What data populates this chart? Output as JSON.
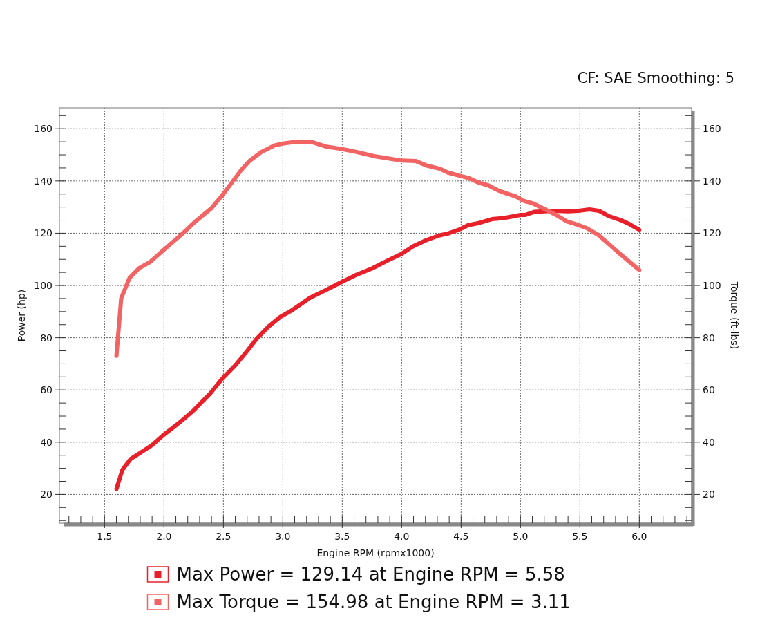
{
  "chart_data": {
    "type": "line",
    "xlabel": "Engine RPM (rpmx1000)",
    "ylabel": "Power (hp)",
    "y2label": "Torque (ft-lbs)",
    "annotations": [
      "CF: SAE Smoothing: 5"
    ],
    "series": [
      {
        "name": "Max Power = 129.14 at Engine RPM = 5.58",
        "color": "#e8202a",
        "x": [
          1.6,
          1.65,
          1.72,
          1.8,
          1.9,
          2.0,
          2.13,
          2.25,
          2.39,
          2.49,
          2.6,
          2.7,
          2.78,
          2.88,
          2.98,
          3.07,
          3.23,
          3.36,
          3.49,
          3.62,
          3.75,
          3.88,
          4.0,
          4.1,
          4.21,
          4.32,
          4.39,
          4.49,
          4.56,
          4.65,
          4.76,
          4.86,
          5.0,
          5.04,
          5.12,
          5.28,
          5.4,
          5.49,
          5.58,
          5.66,
          5.74,
          5.85,
          5.92,
          6.0
        ],
        "values": [
          22.1,
          29.4,
          33.6,
          35.9,
          38.9,
          42.9,
          47.5,
          52.2,
          58.7,
          64.3,
          69.4,
          74.9,
          79.6,
          84.3,
          88.0,
          90.3,
          95.3,
          98.2,
          101.2,
          104.1,
          106.5,
          109.5,
          112.1,
          115.1,
          117.4,
          119.2,
          119.9,
          121.5,
          123.1,
          123.9,
          125.4,
          125.8,
          127.0,
          127.0,
          128.2,
          128.6,
          128.4,
          128.6,
          129.1,
          128.6,
          126.6,
          124.9,
          123.4,
          121.3
        ]
      },
      {
        "name": "Max Torque = 154.98 at Engine RPM = 3.11",
        "color": "#f26464",
        "axis": "y2",
        "x": [
          1.6,
          1.64,
          1.71,
          1.79,
          1.88,
          2.0,
          2.15,
          2.26,
          2.4,
          2.49,
          2.57,
          2.65,
          2.72,
          2.82,
          2.93,
          3.0,
          3.11,
          3.25,
          3.36,
          3.49,
          3.62,
          3.77,
          3.88,
          4.0,
          4.12,
          4.21,
          4.32,
          4.39,
          4.49,
          4.56,
          4.65,
          4.73,
          4.81,
          4.89,
          4.96,
          5.02,
          5.11,
          5.2,
          5.3,
          5.39,
          5.49,
          5.56,
          5.65,
          5.74,
          5.82,
          5.9,
          6.0
        ],
        "values": [
          73.1,
          95.1,
          102.9,
          106.6,
          108.9,
          113.7,
          119.6,
          124.3,
          129.6,
          134.5,
          139.3,
          144.2,
          147.7,
          151.1,
          153.6,
          154.3,
          155.0,
          154.8,
          153.2,
          152.3,
          151.1,
          149.5,
          148.7,
          147.8,
          147.6,
          145.9,
          144.7,
          143.2,
          142.0,
          141.2,
          139.3,
          138.3,
          136.4,
          135.1,
          134.1,
          132.5,
          131.3,
          129.3,
          127.0,
          124.5,
          123.1,
          121.9,
          119.5,
          116.0,
          112.8,
          109.7,
          105.9
        ]
      }
    ],
    "xlim": [
      1.12,
      6.44
    ],
    "xticks": [
      {
        "value": 1.2,
        "label": null
      },
      {
        "value": 1.3,
        "label": null
      },
      {
        "value": 1.4,
        "label": null
      },
      1.5,
      {
        "value": 1.6,
        "label": null
      },
      {
        "value": 1.7,
        "label": null
      },
      {
        "value": 1.8,
        "label": null
      },
      {
        "value": 1.9,
        "label": null
      },
      {
        "value": 2,
        "label": "2.0"
      },
      {
        "value": 2.1,
        "label": null
      },
      {
        "value": 2.2,
        "label": null
      },
      {
        "value": 2.3,
        "label": null
      },
      {
        "value": 2.4,
        "label": null
      },
      2.5,
      {
        "value": 2.6,
        "label": null
      },
      {
        "value": 2.7,
        "label": null
      },
      {
        "value": 2.8,
        "label": null
      },
      {
        "value": 2.9,
        "label": null
      },
      {
        "value": 3,
        "label": "3.0"
      },
      {
        "value": 3.1,
        "label": null
      },
      {
        "value": 3.2,
        "label": null
      },
      {
        "value": 3.3,
        "label": null
      },
      {
        "value": 3.4,
        "label": null
      },
      3.5,
      {
        "value": 3.6,
        "label": null
      },
      {
        "value": 3.7,
        "label": null
      },
      {
        "value": 3.8,
        "label": null
      },
      {
        "value": 3.9,
        "label": null
      },
      {
        "value": 4,
        "label": "4.0"
      },
      {
        "value": 4.1,
        "label": null
      },
      {
        "value": 4.2,
        "label": null
      },
      {
        "value": 4.3,
        "label": null
      },
      {
        "value": 4.4,
        "label": null
      },
      4.5,
      {
        "value": 4.6,
        "label": null
      },
      {
        "value": 4.7,
        "label": null
      },
      {
        "value": 4.8,
        "label": null
      },
      {
        "value": 4.9,
        "label": null
      },
      {
        "value": 5,
        "label": "5.0"
      },
      {
        "value": 5.1,
        "label": null
      },
      {
        "value": 5.2,
        "label": null
      },
      {
        "value": 5.3,
        "label": null
      },
      {
        "value": 5.4,
        "label": null
      },
      5.5,
      {
        "value": 5.6,
        "label": null
      },
      {
        "value": 5.7,
        "label": null
      },
      {
        "value": 5.8,
        "label": null
      },
      {
        "value": 5.9,
        "label": null
      },
      {
        "value": 6,
        "label": "6.0"
      },
      {
        "value": 6.1,
        "label": null
      },
      {
        "value": 6.2,
        "label": null
      },
      {
        "value": 6.3,
        "label": null
      },
      {
        "value": 6.4,
        "label": null
      }
    ],
    "ylim": [
      9,
      168
    ],
    "yticks": [
      {
        "value": 10,
        "label": null
      },
      {
        "value": 15,
        "label": null
      },
      20,
      {
        "value": 25,
        "label": null
      },
      {
        "value": 30,
        "label": null
      },
      {
        "value": 35,
        "label": null
      },
      40,
      {
        "value": 45,
        "label": null
      },
      {
        "value": 50,
        "label": null
      },
      {
        "value": 55,
        "label": null
      },
      60,
      {
        "value": 65,
        "label": null
      },
      {
        "value": 70,
        "label": null
      },
      {
        "value": 75,
        "label": null
      },
      80,
      {
        "value": 85,
        "label": null
      },
      {
        "value": 90,
        "label": null
      },
      {
        "value": 95,
        "label": null
      },
      100,
      {
        "value": 105,
        "label": null
      },
      {
        "value": 110,
        "label": null
      },
      {
        "value": 115,
        "label": null
      },
      120,
      {
        "value": 125,
        "label": null
      },
      {
        "value": 130,
        "label": null
      },
      {
        "value": 135,
        "label": null
      },
      140,
      {
        "value": 145,
        "label": null
      },
      {
        "value": 150,
        "label": null
      },
      {
        "value": 155,
        "label": null
      },
      160,
      {
        "value": 165,
        "label": null
      }
    ],
    "y2lim": [
      9,
      168
    ],
    "y2ticks": [
      {
        "value": 10,
        "label": null
      },
      {
        "value": 15,
        "label": null
      },
      20,
      {
        "value": 25,
        "label": null
      },
      {
        "value": 30,
        "label": null
      },
      {
        "value": 35,
        "label": null
      },
      40,
      {
        "value": 45,
        "label": null
      },
      {
        "value": 50,
        "label": null
      },
      {
        "value": 55,
        "label": null
      },
      60,
      {
        "value": 65,
        "label": null
      },
      {
        "value": 70,
        "label": null
      },
      {
        "value": 75,
        "label": null
      },
      80,
      {
        "value": 85,
        "label": null
      },
      {
        "value": 90,
        "label": null
      },
      {
        "value": 95,
        "label": null
      },
      100,
      {
        "value": 105,
        "label": null
      },
      {
        "value": 110,
        "label": null
      },
      {
        "value": 115,
        "label": null
      },
      120,
      {
        "value": 125,
        "label": null
      },
      {
        "value": 130,
        "label": null
      },
      {
        "value": 135,
        "label": null
      },
      140,
      {
        "value": 145,
        "label": null
      },
      {
        "value": 150,
        "label": null
      },
      {
        "value": 155,
        "label": null
      },
      160,
      {
        "value": 165,
        "label": null
      }
    ],
    "grid": true,
    "legend": "bottom"
  }
}
